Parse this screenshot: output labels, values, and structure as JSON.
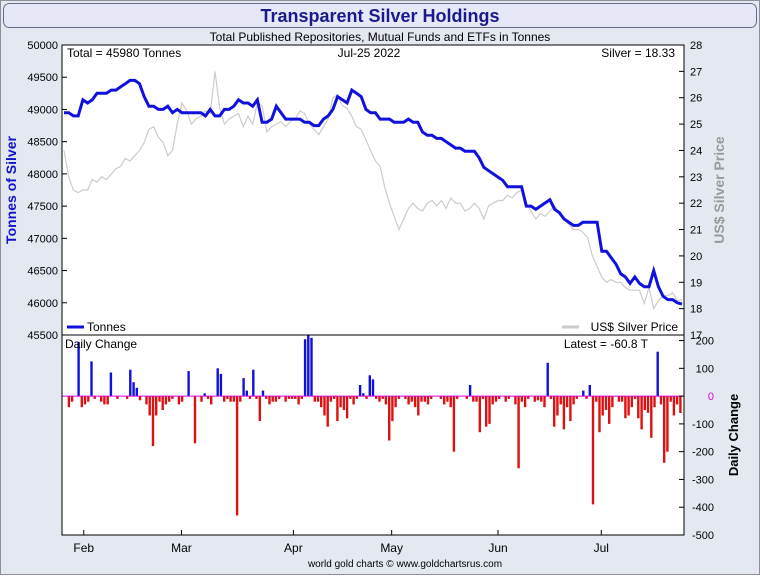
{
  "title": "Transparent Silver Holdings",
  "subtitle": "Total Published Repositories, Mutual Funds and ETFs in Tonnes",
  "footer": "world gold charts © www.goldchartsrus.com",
  "colors": {
    "background": "#e3e8f1",
    "title_bg": "#e6e8f7",
    "title_text": "#1a1a8c",
    "tonnes_line": "#1111dd",
    "silver_line": "#cccccc",
    "pos_bar": "#1111dd",
    "neg_bar": "#dd1111",
    "zero_line": "#dd00dd"
  },
  "chart_data": [
    {
      "type": "line",
      "name": "holdings",
      "title": "Transparent Silver Holdings",
      "subtitle": "Total Published Repositories, Mutual Funds and ETFs in Tonnes",
      "info": {
        "total": "Total = 45980 Tonnes",
        "date": "Jul-25  2022",
        "silver": "Silver = 18.33"
      },
      "ylabel": "Tonnes of Silver",
      "y2label": "US$ Silver Price",
      "ylim": [
        45500,
        50000
      ],
      "y2lim": [
        17,
        28
      ],
      "yticks": [
        "50000",
        "49500",
        "49000",
        "48500",
        "48000",
        "47500",
        "47000",
        "46500",
        "46000",
        "45500"
      ],
      "y2ticks": [
        "28",
        "27",
        "26",
        "25",
        "24",
        "23",
        "22",
        "21",
        "20",
        "19",
        "18",
        "17"
      ],
      "xlabels": [
        "Feb",
        "Mar",
        "Apr",
        "May",
        "Jun",
        "Jul"
      ],
      "legend": {
        "tonnes": "Tonnes",
        "silver": "US$ Silver Price"
      },
      "series": [
        {
          "name": "Tonnes",
          "values": [
            48950,
            48950,
            48900,
            48900,
            49150,
            49100,
            49150,
            49250,
            49250,
            49250,
            49300,
            49300,
            49350,
            49400,
            49450,
            49450,
            49400,
            49200,
            49050,
            49050,
            49000,
            49000,
            49050,
            48950,
            49000,
            48950,
            48950,
            48950,
            48950,
            48950,
            48900,
            49000,
            48900,
            48900,
            49000,
            49000,
            49050,
            49150,
            49100,
            49100,
            49050,
            49150,
            48800,
            48800,
            48850,
            49050,
            48950,
            48850,
            48850,
            48850,
            48850,
            48800,
            48800,
            48750,
            48750,
            48850,
            48900,
            49000,
            49200,
            49150,
            49100,
            49300,
            49250,
            49200,
            49000,
            48950,
            48950,
            48850,
            48850,
            48850,
            48800,
            48800,
            48800,
            48850,
            48800,
            48800,
            48650,
            48600,
            48600,
            48550,
            48550,
            48500,
            48450,
            48400,
            48400,
            48350,
            48350,
            48350,
            48250,
            48100,
            48050,
            48000,
            47950,
            47900,
            47800,
            47800,
            47800,
            47800,
            47500,
            47500,
            47450,
            47500,
            47550,
            47600,
            47450,
            47400,
            47300,
            47250,
            47200,
            47200,
            47250,
            47250,
            47250,
            47250,
            46800,
            46800,
            46700,
            46600,
            46450,
            46400,
            46300,
            46400,
            46300,
            46250,
            46250,
            46500,
            46250,
            46100,
            46050,
            46050,
            46000,
            45980
          ]
        },
        {
          "name": "US$ Silver Price",
          "values": [
            24.0,
            23.0,
            22.5,
            22.4,
            22.5,
            22.5,
            22.9,
            22.8,
            23.0,
            22.9,
            23.1,
            23.3,
            23.4,
            23.7,
            23.6,
            23.8,
            24.0,
            24.3,
            24.8,
            24.9,
            24.5,
            24.3,
            23.8,
            24.0,
            25.0,
            25.8,
            25.5,
            25.0,
            25.2,
            25.3,
            25.5,
            25.4,
            27.0,
            25.6,
            25.0,
            25.2,
            25.3,
            25.4,
            24.9,
            25.3,
            25.0,
            25.8,
            25.7,
            24.7,
            24.9,
            25.0,
            25.1,
            24.9,
            25.1,
            25.2,
            25.5,
            25.4,
            25.0,
            24.8,
            24.6,
            24.9,
            25.2,
            26.0,
            26.1,
            25.7,
            25.6,
            25.3,
            24.9,
            24.8,
            24.4,
            24.0,
            23.6,
            23.4,
            22.6,
            22.0,
            21.5,
            21.0,
            21.4,
            21.8,
            22.0,
            21.8,
            21.7,
            22.0,
            22.1,
            21.9,
            22.1,
            21.8,
            22.2,
            22.0,
            22.0,
            21.7,
            21.8,
            22.0,
            21.8,
            21.4,
            21.9,
            22.0,
            22.1,
            22.1,
            22.3,
            22.2,
            22.4,
            22.5,
            22.0,
            21.7,
            21.4,
            21.6,
            21.5,
            21.7,
            21.9,
            21.6,
            21.4,
            21.2,
            21.0,
            21.0,
            20.9,
            20.7,
            20.0,
            19.6,
            19.2,
            19.0,
            19.1,
            19.0,
            19.0,
            18.8,
            18.7,
            18.7,
            18.7,
            18.2,
            18.8,
            18.0,
            18.3,
            18.5,
            18.5,
            18.6,
            18.3,
            18.33
          ]
        }
      ]
    },
    {
      "type": "bar",
      "name": "daily-change",
      "title": "Daily Change",
      "latest": "Latest = -60.8 T",
      "ylabel": "Daily Change",
      "ylim": [
        -500,
        220
      ],
      "yticks": [
        "200",
        "100",
        "0",
        "-100",
        "-200",
        "-300",
        "-400",
        "-500"
      ],
      "values": [
        0,
        -40,
        -20,
        0,
        195,
        -40,
        -30,
        -20,
        125,
        -10,
        0,
        -20,
        -30,
        -30,
        85,
        0,
        -10,
        0,
        0,
        -10,
        95,
        50,
        30,
        -15,
        0,
        -30,
        -70,
        -180,
        -70,
        -20,
        -50,
        -30,
        -20,
        -10,
        0,
        -30,
        -20,
        0,
        90,
        0,
        -170,
        0,
        -20,
        10,
        -10,
        -30,
        0,
        100,
        80,
        -20,
        -10,
        -20,
        -20,
        -430,
        -20,
        65,
        20,
        -10,
        95,
        -10,
        -90,
        20,
        -10,
        -30,
        -20,
        -20,
        -10,
        0,
        -20,
        -10,
        -10,
        -10,
        -30,
        -10,
        205,
        220,
        210,
        -20,
        -20,
        -40,
        -70,
        -110,
        -20,
        -10,
        -90,
        -40,
        -50,
        -80,
        -10,
        -30,
        -10,
        40,
        10,
        -10,
        75,
        60,
        -10,
        -20,
        -10,
        -30,
        -160,
        -90,
        -40,
        -10,
        0,
        -10,
        -30,
        -20,
        -40,
        -70,
        -20,
        -20,
        -30,
        -10,
        0,
        0,
        -10,
        -30,
        -20,
        -40,
        -200,
        -10,
        0,
        0,
        -10,
        40,
        -20,
        -20,
        -130,
        -10,
        -110,
        -100,
        -30,
        -20,
        -10,
        0,
        -20,
        -10,
        0,
        -30,
        -260,
        -20,
        -40,
        -10,
        0,
        -20,
        -15,
        -20,
        -40,
        120,
        -10,
        -110,
        -70,
        -30,
        -120,
        -40,
        -90,
        -30,
        -10,
        0,
        20,
        -10,
        40,
        -390,
        -20,
        -130,
        -70,
        -50,
        -100,
        -40,
        0,
        -20,
        -20,
        -80,
        -70,
        -40,
        -10,
        -80,
        -120,
        -50,
        -60,
        -150,
        -40,
        160,
        -30,
        -240,
        -200,
        -20,
        -70,
        -30,
        -60.8
      ]
    }
  ]
}
